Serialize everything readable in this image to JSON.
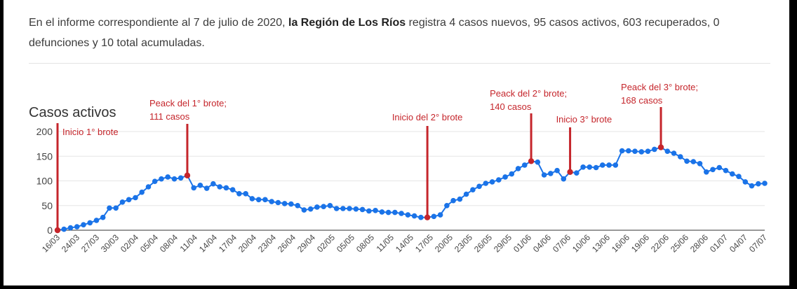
{
  "article": {
    "text_before": "En el informe correspondiente al 7 de julio de 2020, ",
    "region": "la Región de Los Ríos",
    "text_after": " registra 4 casos nuevos, 95 casos activos, 603 recuperados, 0 defunciones y 10 total acumuladas."
  },
  "chart_data": {
    "type": "line",
    "title": "Casos activos",
    "xlabel": "",
    "ylabel": "",
    "ylim": [
      0,
      200
    ],
    "yticks": [
      0,
      50,
      100,
      150,
      200
    ],
    "grid": true,
    "x_tick_labels": [
      "16/03",
      "24/03",
      "27/03",
      "30/03",
      "02/04",
      "05/04",
      "08/04",
      "11/04",
      "14/04",
      "17/04",
      "20/04",
      "23/04",
      "26/04",
      "29/04",
      "02/05",
      "05/05",
      "08/05",
      "11/05",
      "14/05",
      "17/05",
      "20/05",
      "23/05",
      "26/05",
      "29/05",
      "01/06",
      "04/06",
      "07/06",
      "10/06",
      "13/06",
      "16/06",
      "19/06",
      "22/06",
      "25/06",
      "28/06",
      "01/07",
      "04/07",
      "07/07"
    ],
    "series": [
      {
        "color": "#1a73e8",
        "values": [
          0,
          2,
          5,
          7,
          11,
          15,
          20,
          26,
          45,
          45,
          57,
          62,
          66,
          77,
          88,
          99,
          104,
          108,
          104,
          106,
          111,
          86,
          91,
          85,
          94,
          88,
          86,
          82,
          74,
          74,
          64,
          62,
          62,
          58,
          56,
          54,
          53,
          50,
          41,
          43,
          47,
          48,
          50,
          44,
          44,
          44,
          43,
          42,
          39,
          40,
          37,
          36,
          36,
          34,
          31,
          29,
          26,
          26,
          28,
          31,
          50,
          60,
          63,
          73,
          82,
          89,
          95,
          98,
          102,
          108,
          114,
          125,
          132,
          140,
          138,
          112,
          115,
          121,
          104,
          118,
          116,
          128,
          128,
          127,
          132,
          132,
          132,
          161,
          161,
          160,
          159,
          160,
          164,
          168,
          160,
          156,
          149,
          140,
          139,
          135,
          118,
          123,
          127,
          121,
          114,
          109,
          98,
          90,
          94,
          95
        ]
      }
    ],
    "annotations": [
      {
        "label": "Inicio 1° brote",
        "index": 0,
        "value": 0
      },
      {
        "label": "Peack del 1° brote; 111 casos",
        "line1": "Peack del 1° brote;",
        "line2": "111 casos",
        "index": 20,
        "value": 111
      },
      {
        "label": "Inicio del 2° brote",
        "index": 57,
        "value": 26
      },
      {
        "label": "Peack del 2° brote; 140 casos",
        "line1": "Peack del 2° brote;",
        "line2": "140 casos",
        "index": 73,
        "value": 140
      },
      {
        "label": "Inicio 3° brote",
        "index": 79,
        "value": 118
      },
      {
        "label": "Peack del 3° brote; 168 casos",
        "line1": "Peack del 3° brote;",
        "line2": "168 casos",
        "index": 93,
        "value": 168
      }
    ],
    "annotation_color": "#c5252b"
  }
}
